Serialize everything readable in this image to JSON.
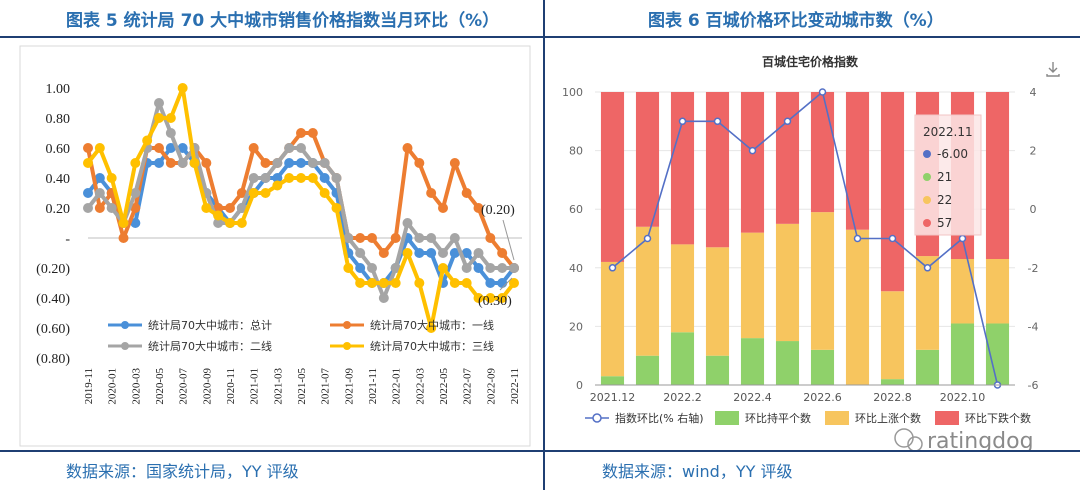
{
  "left": {
    "title": "图表 5 统计局 70 大中城市销售价格指数当月环比（%）",
    "source": "数据来源：国家统计局，YY 评级"
  },
  "right": {
    "title": "图表 6 百城价格环比变动城市数（%）",
    "source": "数据来源：wind，YY 评级",
    "download_icon": "download-icon",
    "watermark": "ratingdog"
  },
  "colors": {
    "frame": "#1f3f73",
    "title": "#2a6fb0",
    "total": "#4a90d9",
    "tier1": "#ed7d31",
    "tier2": "#a5a5a5",
    "tier3": "#ffc000",
    "flat": "#8fd16a",
    "up": "#f7c55e",
    "down": "#ee6666",
    "index_line": "#5470c6"
  },
  "chart_data": [
    {
      "type": "line",
      "title": "统计局70大中城市销售价格指数当月环比",
      "ylim": [
        -0.8,
        1.0
      ],
      "yticks": [
        1.0,
        0.8,
        0.6,
        0.4,
        0.2,
        0,
        -0.2,
        -0.4,
        -0.6,
        -0.8
      ],
      "ytick_labels": [
        "1.00",
        "0.80",
        "0.60",
        "0.40",
        "0.20",
        "-",
        "(0.20)",
        "(0.40)",
        "(0.60)",
        "(0.80)"
      ],
      "x": [
        "2019-11",
        "2019-12",
        "2020-01",
        "2020-02",
        "2020-03",
        "2020-04",
        "2020-05",
        "2020-06",
        "2020-07",
        "2020-08",
        "2020-09",
        "2020-10",
        "2020-11",
        "2020-12",
        "2021-01",
        "2021-02",
        "2021-03",
        "2021-04",
        "2021-05",
        "2021-06",
        "2021-07",
        "2021-08",
        "2021-09",
        "2021-10",
        "2021-11",
        "2021-12",
        "2022-01",
        "2022-02",
        "2022-03",
        "2022-04",
        "2022-05",
        "2022-06",
        "2022-07",
        "2022-08",
        "2022-09",
        "2022-10",
        "2022-11"
      ],
      "xtick_labels": [
        "2019-11",
        "2020-01",
        "2020-03",
        "2020-05",
        "2020-07",
        "2020-09",
        "2020-11",
        "2021-01",
        "2021-03",
        "2021-05",
        "2021-07",
        "2021-09",
        "2021-11",
        "2022-01",
        "2022-03",
        "2022-05",
        "2022-07",
        "2022-09",
        "2022-11"
      ],
      "series": [
        {
          "name": "统计局70大中城市：总计",
          "values": [
            0.3,
            0.4,
            0.3,
            0.1,
            0.1,
            0.5,
            0.5,
            0.6,
            0.6,
            0.5,
            0.3,
            0.2,
            0.1,
            0.2,
            0.3,
            0.4,
            0.4,
            0.5,
            0.5,
            0.5,
            0.4,
            0.3,
            -0.1,
            -0.2,
            -0.3,
            -0.3,
            -0.2,
            0.0,
            -0.1,
            -0.1,
            -0.3,
            -0.1,
            -0.1,
            -0.2,
            -0.3,
            -0.3,
            -0.2
          ]
        },
        {
          "name": "统计局70大中城市：一线",
          "values": [
            0.6,
            0.2,
            0.3,
            0.0,
            0.2,
            0.6,
            0.6,
            0.5,
            0.5,
            0.6,
            0.5,
            0.2,
            0.2,
            0.3,
            0.6,
            0.5,
            0.5,
            0.6,
            0.7,
            0.7,
            0.5,
            0.4,
            0.0,
            0.0,
            0.0,
            -0.1,
            0.0,
            0.6,
            0.5,
            0.3,
            0.2,
            0.5,
            0.3,
            0.2,
            0.0,
            -0.1,
            -0.2
          ]
        },
        {
          "name": "统计局70大中城市：二线",
          "values": [
            0.2,
            0.3,
            0.2,
            0.1,
            0.3,
            0.6,
            0.9,
            0.7,
            0.5,
            0.6,
            0.3,
            0.1,
            0.1,
            0.2,
            0.4,
            0.4,
            0.5,
            0.6,
            0.6,
            0.5,
            0.5,
            0.4,
            0.0,
            -0.1,
            -0.2,
            -0.4,
            -0.2,
            0.1,
            0.0,
            0.0,
            -0.1,
            0.0,
            -0.2,
            -0.1,
            -0.2,
            -0.2,
            -0.2
          ]
        },
        {
          "name": "统计局70大中城市：三线",
          "values": [
            0.5,
            0.6,
            0.4,
            0.1,
            0.5,
            0.65,
            0.8,
            0.8,
            1.0,
            0.5,
            0.2,
            0.15,
            0.1,
            0.1,
            0.3,
            0.3,
            0.35,
            0.4,
            0.4,
            0.4,
            0.3,
            0.2,
            -0.2,
            -0.3,
            -0.3,
            -0.3,
            -0.3,
            -0.1,
            -0.3,
            -0.6,
            -0.2,
            -0.3,
            -0.3,
            -0.4,
            -0.4,
            -0.4,
            -0.3
          ]
        }
      ],
      "annotations": [
        "(0.20)",
        "(0.30)"
      ]
    },
    {
      "type": "bar",
      "title": "百城住宅价格指数",
      "categories": [
        "2021.12",
        "2022.1",
        "2022.2",
        "2022.3",
        "2022.4",
        "2022.5",
        "2022.6",
        "2022.7",
        "2022.8",
        "2022.9",
        "2022.10",
        "2022.11"
      ],
      "xtick_labels": [
        "2021.12",
        "2022.2",
        "2022.4",
        "2022.6",
        "2022.8",
        "2022.10"
      ],
      "ylim": [
        0,
        100
      ],
      "yticks": [
        0,
        20,
        40,
        60,
        80,
        100
      ],
      "y2lim": [
        -6,
        4
      ],
      "y2ticks": [
        4,
        2,
        0,
        -2,
        -4,
        -6
      ],
      "stacked": true,
      "series": [
        {
          "name": "环比持平个数",
          "values": [
            3,
            10,
            18,
            10,
            16,
            15,
            12,
            0,
            2,
            12,
            21,
            21
          ]
        },
        {
          "name": "环比上涨个数",
          "values": [
            39,
            44,
            30,
            37,
            36,
            40,
            47,
            53,
            30,
            32,
            22,
            22
          ]
        },
        {
          "name": "环比下跌个数",
          "values": [
            58,
            46,
            52,
            53,
            48,
            45,
            41,
            47,
            68,
            56,
            57,
            57
          ]
        },
        {
          "name": "指数环比(% 右轴)",
          "axis": "right",
          "type": "line",
          "values": [
            -2,
            -1,
            3,
            3,
            2,
            3,
            4,
            -1,
            -1,
            -2,
            -1,
            -6
          ]
        }
      ],
      "tooltip": {
        "title": "2022.11",
        "rows": [
          "-6.00",
          "21",
          "22",
          "57"
        ]
      }
    }
  ]
}
